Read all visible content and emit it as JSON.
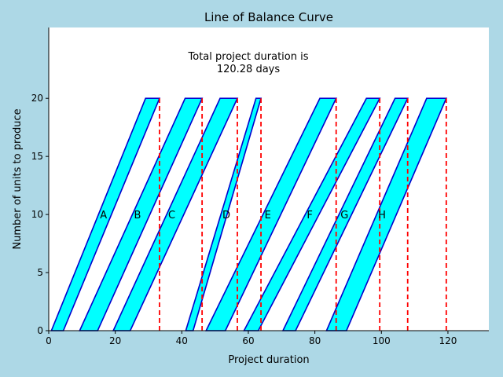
{
  "chart_data": {
    "type": "line-of-balance",
    "title": "Line of Balance Curve",
    "xlabel": "Project duration",
    "ylabel": "Number of units to produce",
    "xlim": [
      0,
      132.3
    ],
    "ylim": [
      0,
      26.1
    ],
    "xticks": [
      0,
      20,
      40,
      60,
      80,
      100,
      120
    ],
    "yticks": [
      0,
      5,
      10,
      15,
      20
    ],
    "grid": false,
    "annotation": "Total project duration is\n120.28 days",
    "fill_color": "#00ffff",
    "edge_color": "#0000cc",
    "deadline_color": "#ff0000",
    "activities": [
      {
        "label": "A",
        "start_bl": 0.8,
        "start_br": 4.4,
        "end_tl": 29.1,
        "end_tr": 33.3,
        "deadline": 33.3
      },
      {
        "label": "B",
        "start_bl": 9.3,
        "start_br": 14.7,
        "end_tl": 41.0,
        "end_tr": 46.1,
        "deadline": 46.1
      },
      {
        "label": "C",
        "start_bl": 19.4,
        "start_br": 24.5,
        "end_tl": 51.5,
        "end_tr": 56.7,
        "deadline": 56.7
      },
      {
        "label": "D",
        "start_bl": 41.2,
        "start_br": 43.4,
        "end_tl": 62.3,
        "end_tr": 63.8,
        "deadline": 63.8
      },
      {
        "label": "E",
        "start_bl": 47.3,
        "start_br": 53.1,
        "end_tl": 81.5,
        "end_tr": 86.4,
        "deadline": 86.4
      },
      {
        "label": "F",
        "start_bl": 58.7,
        "start_br": 63.0,
        "end_tl": 95.5,
        "end_tr": 99.5,
        "deadline": 99.5
      },
      {
        "label": "G",
        "start_bl": 70.4,
        "start_br": 74.2,
        "end_tl": 104.1,
        "end_tr": 107.9,
        "deadline": 107.9
      },
      {
        "label": "H",
        "start_bl": 83.5,
        "start_br": 89.5,
        "end_tl": 113.6,
        "end_tr": 119.5,
        "deadline": 119.5
      }
    ],
    "label_y": 10
  }
}
